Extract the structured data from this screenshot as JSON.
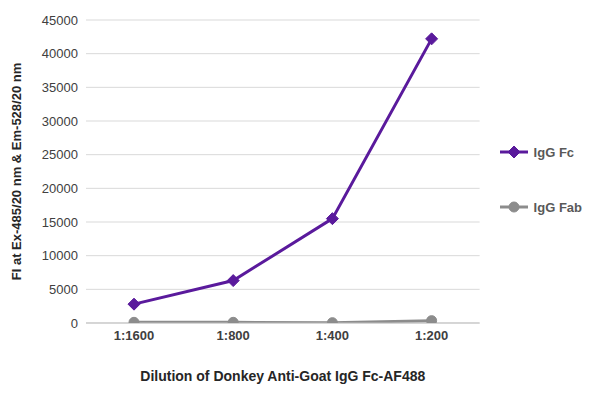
{
  "chart_data": {
    "type": "line",
    "x_label": "Dilution of Donkey Anti-Goat IgG Fc-AF488",
    "y_label": "FI at Ex-485/20 nm & Em-528/20 nm",
    "categories": [
      "1:1600",
      "1:800",
      "1:400",
      "1:200"
    ],
    "series": [
      {
        "name": "IgG Fc",
        "color": "#5a1a9c",
        "marker": "diamond",
        "values": [
          2800,
          6300,
          15500,
          42200
        ]
      },
      {
        "name": "IgG Fab",
        "color": "#8c8c8c",
        "marker": "circle",
        "values": [
          100,
          100,
          50,
          350
        ]
      }
    ],
    "ylim": [
      0,
      45000
    ],
    "yticks": [
      0,
      5000,
      10000,
      15000,
      20000,
      25000,
      30000,
      35000,
      40000,
      45000
    ],
    "grid": true,
    "legend": "right"
  }
}
